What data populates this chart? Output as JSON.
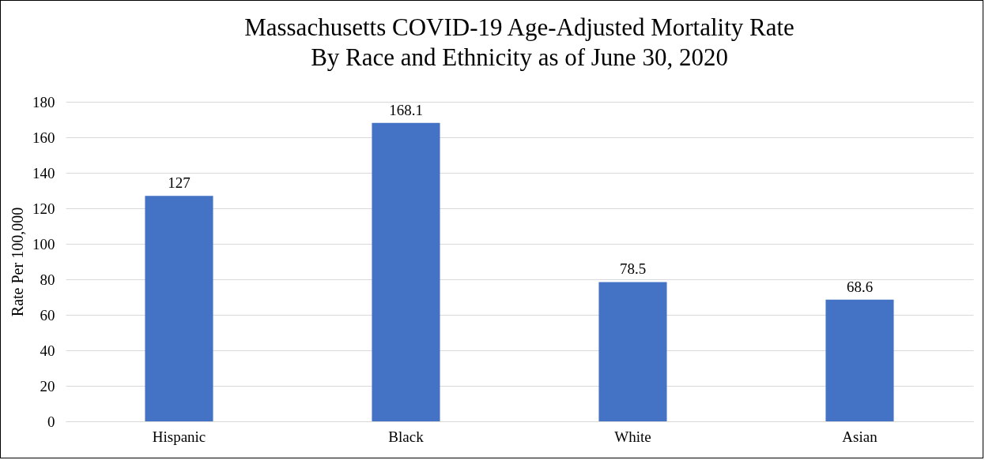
{
  "chart_data": {
    "type": "bar",
    "title": "Massachusetts COVID-19 Age-Adjusted Mortality Rate\nBy Race and Ethnicity as of June 30, 2020",
    "ylabel": "Rate Per 100,000",
    "categories": [
      "Hispanic",
      "Black",
      "White",
      "Asian"
    ],
    "values": [
      127,
      168.1,
      78.5,
      68.6
    ],
    "color": "#4472c4",
    "ylim": [
      0,
      180
    ],
    "yticks": [
      0,
      20,
      40,
      60,
      80,
      100,
      120,
      140,
      160,
      180
    ],
    "grid": "y",
    "data_labels": true
  }
}
